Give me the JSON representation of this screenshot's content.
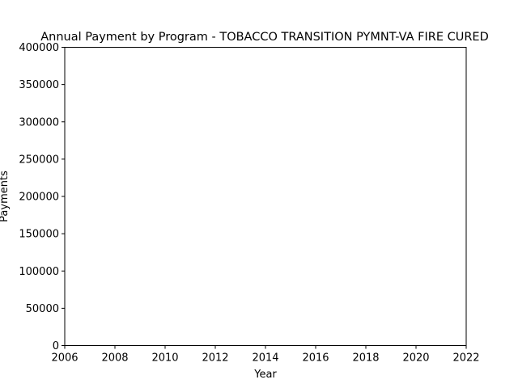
{
  "chart_data": {
    "type": "line",
    "title": "Annual Payment by Program - TOBACCO TRANSITION PYMNT-VA FIRE CURED",
    "xlabel": "Year",
    "ylabel": "Payments",
    "xlim": [
      2006,
      2022
    ],
    "ylim": [
      0,
      400000
    ],
    "x_ticks": [
      2006,
      2008,
      2010,
      2012,
      2014,
      2016,
      2018,
      2020,
      2022
    ],
    "y_ticks": [
      0,
      50000,
      100000,
      150000,
      200000,
      250000,
      300000,
      350000,
      400000
    ],
    "grid": false,
    "series": []
  }
}
